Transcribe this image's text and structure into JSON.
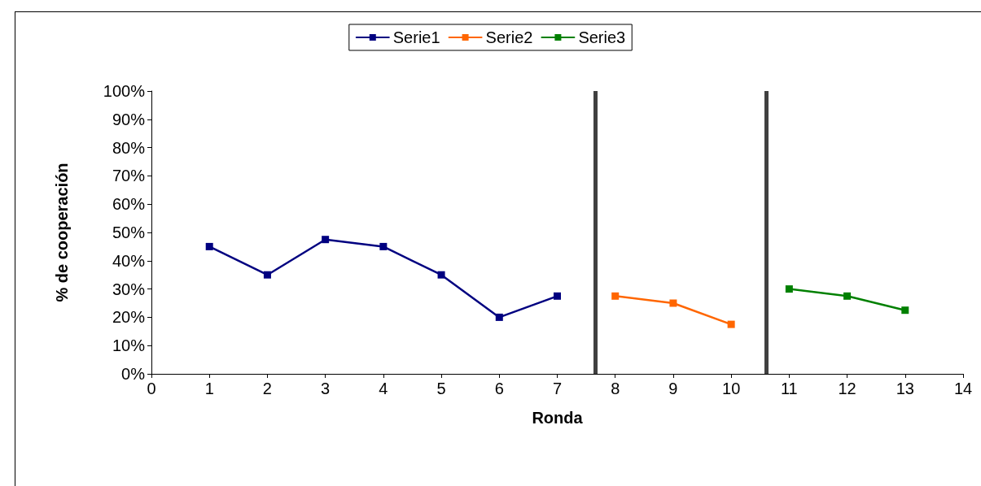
{
  "chart_data": {
    "type": "line",
    "xlabel": "Ronda",
    "ylabel": "% de cooperación",
    "xlim": [
      0,
      14
    ],
    "xticks": [
      0,
      1,
      2,
      3,
      4,
      5,
      6,
      7,
      8,
      9,
      10,
      11,
      12,
      13,
      14
    ],
    "ylim": [
      0,
      100
    ],
    "yticks": [
      {
        "value": 0,
        "label": "0%"
      },
      {
        "value": 10,
        "label": "10%"
      },
      {
        "value": 20,
        "label": "20%"
      },
      {
        "value": 30,
        "label": "30%"
      },
      {
        "value": 40,
        "label": "40%"
      },
      {
        "value": 50,
        "label": "50%"
      },
      {
        "value": 60,
        "label": "60%"
      },
      {
        "value": 70,
        "label": "70%"
      },
      {
        "value": 80,
        "label": "80%"
      },
      {
        "value": 90,
        "label": "90%"
      },
      {
        "value": 100,
        "label": "100%"
      }
    ],
    "grid": false,
    "legend": "top",
    "marker": "square",
    "line_style": "solid",
    "series": [
      {
        "name": "Serie1",
        "color": "#000080",
        "x": [
          1,
          2,
          3,
          4,
          5,
          6,
          7
        ],
        "values": [
          45,
          35,
          47.5,
          45,
          35,
          20,
          27.5
        ]
      },
      {
        "name": "Serie2",
        "color": "#ff6600",
        "x": [
          8,
          9,
          10
        ],
        "values": [
          27.5,
          25,
          17.5
        ]
      },
      {
        "name": "Serie3",
        "color": "#008000",
        "x": [
          11,
          12,
          13
        ],
        "values": [
          30,
          27.5,
          22.5
        ]
      }
    ],
    "ref_lines": [
      {
        "axis": "x",
        "value": 7.65,
        "color": "#404040"
      },
      {
        "axis": "x",
        "value": 10.6,
        "color": "#404040"
      }
    ]
  }
}
